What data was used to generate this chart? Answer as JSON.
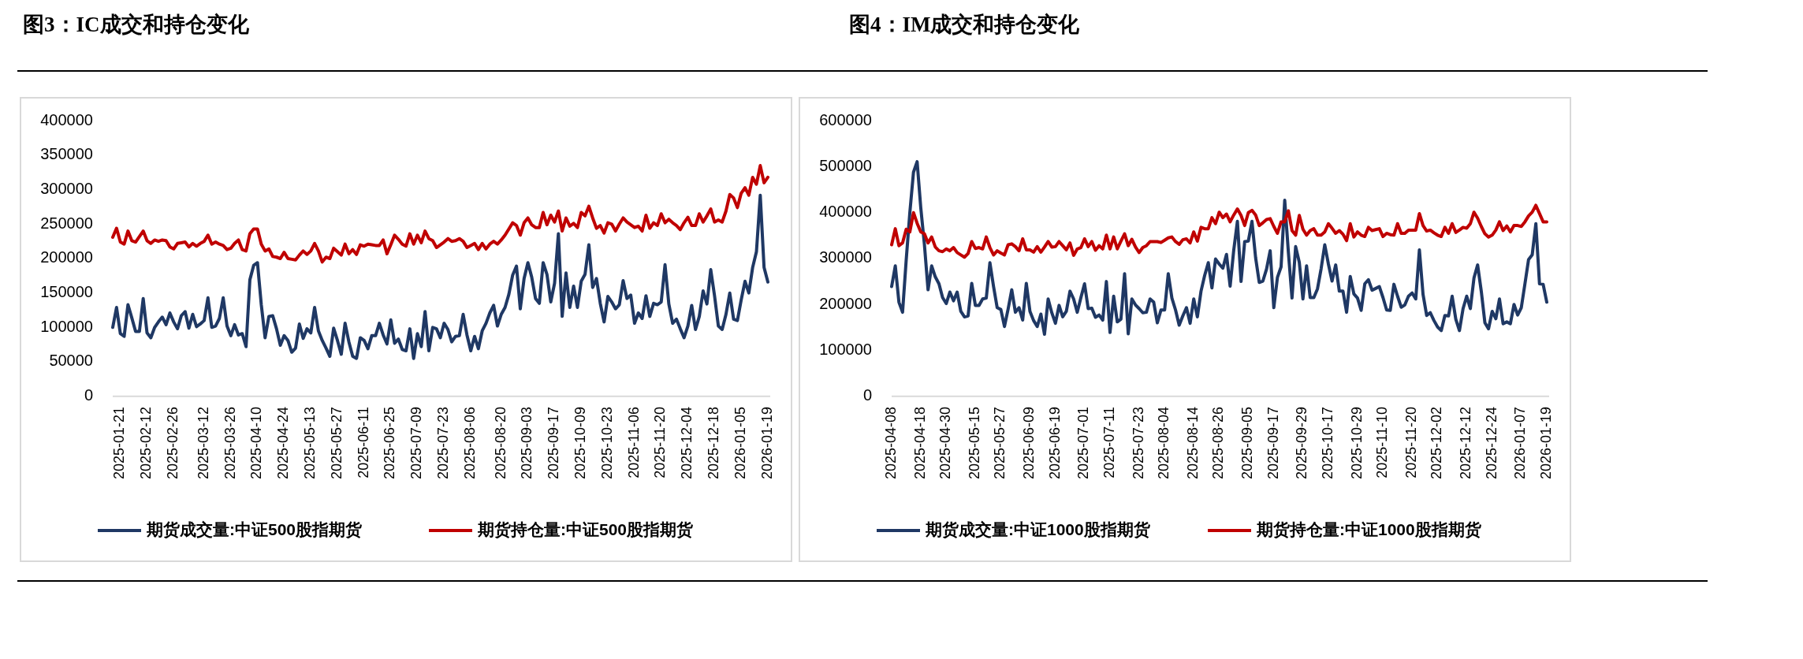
{
  "chart_data": [
    {
      "type": "line",
      "title": "图3：IC成交和持仓变化",
      "categories": [
        null,
        null,
        "2025-01-21",
        null,
        null,
        null,
        null,
        null,
        null,
        "2025-02-12",
        null,
        null,
        null,
        null,
        null,
        null,
        "2025-02-26",
        null,
        null,
        null,
        null,
        null,
        null,
        null,
        "2025-03-12",
        null,
        null,
        null,
        null,
        null,
        null,
        "2025-03-26",
        null,
        null,
        null,
        null,
        null,
        null,
        "2025-04-10",
        null,
        null,
        null,
        null,
        null,
        null,
        "2025-04-24",
        null,
        null,
        null,
        null,
        null,
        null,
        "2025-05-13",
        null,
        null,
        null,
        null,
        null,
        null,
        "2025-05-27",
        null,
        null,
        null,
        null,
        null,
        null,
        "2025-06-11",
        null,
        null,
        null,
        null,
        null,
        null,
        "2025-06-25",
        null,
        null,
        null,
        null,
        null,
        null,
        "2025-07-09",
        null,
        null,
        null,
        null,
        null,
        null,
        "2025-07-23",
        null,
        null,
        null,
        null,
        null,
        null,
        "2025-08-06",
        null,
        null,
        null,
        null,
        null,
        null,
        null,
        "2025-08-20",
        null,
        null,
        null,
        null,
        null,
        null,
        "2025-09-03",
        null,
        null,
        null,
        null,
        null,
        null,
        "2025-09-17",
        null,
        null,
        null,
        null,
        null,
        null,
        "2025-10-09",
        null,
        null,
        null,
        null,
        null,
        null,
        "2025-10-23",
        null,
        null,
        null,
        null,
        null,
        null,
        "2025-11-06",
        null,
        null,
        null,
        null,
        null,
        null,
        "2025-11-20",
        null,
        null,
        null,
        null,
        null,
        null,
        "2025-12-04",
        null,
        null,
        null,
        null,
        null,
        null,
        "2025-12-18",
        null,
        null,
        null,
        null,
        null,
        null,
        "2026-01-05",
        null,
        null,
        null,
        null,
        null,
        null,
        "2026-01-19"
      ],
      "series": [
        {
          "name": "期货成交量:中证500股指期货",
          "color": "#1f3864",
          "values": [
            100000,
            129000,
            91000,
            87000,
            133000,
            114000,
            94000,
            94000,
            142000,
            92000,
            85000,
            100000,
            108000,
            115000,
            104000,
            121000,
            108000,
            98000,
            117000,
            123000,
            99000,
            119000,
            101000,
            105000,
            110000,
            143000,
            100000,
            102000,
            113000,
            143000,
            102000,
            88000,
            104000,
            89000,
            91000,
            72000,
            169000,
            190000,
            194000,
            133000,
            85000,
            116000,
            117000,
            98000,
            74000,
            88000,
            81000,
            64000,
            70000,
            105000,
            84000,
            98000,
            92000,
            129000,
            95000,
            81000,
            70000,
            58000,
            99000,
            81000,
            61000,
            106000,
            79000,
            58000,
            55000,
            85000,
            81000,
            69000,
            88000,
            88000,
            106000,
            89000,
            76000,
            111000,
            77000,
            83000,
            68000,
            66000,
            98000,
            55000,
            91000,
            72000,
            123000,
            66000,
            100000,
            98000,
            85000,
            106000,
            97000,
            79000,
            87000,
            88000,
            119000,
            89000,
            66000,
            87000,
            69000,
            95000,
            106000,
            121000,
            132000,
            102000,
            119000,
            129000,
            148000,
            176000,
            189000,
            127000,
            171000,
            194000,
            173000,
            142000,
            135000,
            194000,
            177000,
            137000,
            164000,
            236000,
            116000,
            179000,
            129000,
            160000,
            129000,
            167000,
            177000,
            220000,
            158000,
            171000,
            135000,
            108000,
            145000,
            137000,
            127000,
            133000,
            168000,
            142000,
            147000,
            106000,
            121000,
            113000,
            146000,
            116000,
            135000,
            133000,
            137000,
            191000,
            134000,
            106000,
            112000,
            98000,
            85000,
            102000,
            132000,
            97000,
            116000,
            153000,
            134000,
            184000,
            146000,
            102000,
            97000,
            119000,
            150000,
            112000,
            110000,
            140000,
            167000,
            150000,
            187000,
            210000,
            292000,
            187000,
            166000
          ]
        },
        {
          "name": "期货持仓量:中证500股指期货",
          "color": "#c00000",
          "values": [
            231000,
            244000,
            224000,
            221000,
            240000,
            226000,
            224000,
            232000,
            240000,
            226000,
            222000,
            227000,
            225000,
            227000,
            226000,
            217000,
            214000,
            222000,
            223000,
            224000,
            217000,
            222000,
            218000,
            222000,
            225000,
            234000,
            221000,
            224000,
            221000,
            219000,
            213000,
            215000,
            222000,
            227000,
            213000,
            211000,
            236000,
            243000,
            243000,
            221000,
            211000,
            214000,
            203000,
            202000,
            200000,
            209000,
            200000,
            199000,
            198000,
            205000,
            211000,
            206000,
            211000,
            222000,
            211000,
            195000,
            202000,
            200000,
            215000,
            210000,
            205000,
            221000,
            207000,
            213000,
            206000,
            220000,
            218000,
            221000,
            220000,
            219000,
            219000,
            227000,
            207000,
            220000,
            234000,
            228000,
            221000,
            218000,
            236000,
            221000,
            234000,
            223000,
            240000,
            229000,
            226000,
            216000,
            220000,
            224000,
            229000,
            225000,
            226000,
            229000,
            225000,
            216000,
            219000,
            222000,
            213000,
            222000,
            214000,
            221000,
            225000,
            221000,
            227000,
            234000,
            243000,
            252000,
            248000,
            234000,
            252000,
            259000,
            249000,
            245000,
            245000,
            267000,
            249000,
            263000,
            253000,
            269000,
            240000,
            259000,
            247000,
            251000,
            245000,
            267000,
            262000,
            276000,
            259000,
            244000,
            248000,
            237000,
            252000,
            250000,
            240000,
            250000,
            259000,
            253000,
            249000,
            245000,
            247000,
            240000,
            263000,
            244000,
            252000,
            248000,
            265000,
            252000,
            257000,
            252000,
            248000,
            242000,
            252000,
            260000,
            248000,
            248000,
            265000,
            253000,
            262000,
            272000,
            253000,
            256000,
            253000,
            269000,
            293000,
            288000,
            274000,
            295000,
            303000,
            292000,
            318000,
            308000,
            335000,
            310000,
            318000
          ]
        }
      ],
      "ylim": [
        0,
        400000
      ],
      "yticks": [
        0,
        50000,
        100000,
        150000,
        200000,
        250000,
        300000,
        350000,
        400000
      ],
      "legend": "bottom"
    },
    {
      "type": "line",
      "title": "图4：IM成交和持仓变化",
      "categories": [
        "2025-04-08",
        null,
        null,
        null,
        null,
        null,
        null,
        null,
        "2025-04-18",
        null,
        null,
        null,
        null,
        null,
        null,
        "2025-04-30",
        null,
        null,
        null,
        null,
        null,
        null,
        null,
        "2025-05-15",
        null,
        null,
        null,
        null,
        null,
        null,
        "2025-05-27",
        null,
        null,
        null,
        null,
        null,
        null,
        null,
        "2025-06-09",
        null,
        null,
        null,
        null,
        null,
        null,
        "2025-06-19",
        null,
        null,
        null,
        null,
        null,
        null,
        null,
        "2025-07-01",
        null,
        null,
        null,
        null,
        null,
        null,
        "2025-07-11",
        null,
        null,
        null,
        null,
        null,
        null,
        null,
        "2025-07-23",
        null,
        null,
        null,
        null,
        null,
        null,
        "2025-08-04",
        null,
        null,
        null,
        null,
        null,
        null,
        null,
        "2025-08-14",
        null,
        null,
        null,
        null,
        null,
        null,
        "2025-08-26",
        null,
        null,
        null,
        null,
        null,
        null,
        null,
        "2025-09-05",
        null,
        null,
        null,
        null,
        null,
        null,
        "2025-09-17",
        null,
        null,
        null,
        null,
        null,
        null,
        null,
        "2025-09-29",
        null,
        null,
        null,
        null,
        null,
        null,
        "2025-10-17",
        null,
        null,
        null,
        null,
        null,
        null,
        null,
        "2025-10-29",
        null,
        null,
        null,
        null,
        null,
        null,
        "2025-11-10",
        null,
        null,
        null,
        null,
        null,
        null,
        null,
        "2025-11-20",
        null,
        null,
        null,
        null,
        null,
        null,
        "2025-12-02",
        null,
        null,
        null,
        null,
        null,
        null,
        null,
        "2025-12-12",
        null,
        null,
        null,
        null,
        null,
        null,
        "2025-12-24",
        null,
        null,
        null,
        null,
        null,
        null,
        null,
        "2026-01-07",
        null,
        null,
        null,
        null,
        null,
        null,
        "2026-01-19"
      ],
      "series": [
        {
          "name": "期货成交量:中证1000股指期货",
          "color": "#1f3864",
          "values": [
            239000,
            284000,
            205000,
            183000,
            297000,
            400000,
            488000,
            511000,
            411000,
            331000,
            232000,
            284000,
            260000,
            245000,
            215000,
            202000,
            227000,
            208000,
            227000,
            185000,
            173000,
            175000,
            246000,
            198000,
            198000,
            212000,
            214000,
            291000,
            239000,
            193000,
            189000,
            152000,
            190000,
            232000,
            183000,
            193000,
            166000,
            246000,
            185000,
            165000,
            152000,
            179000,
            135000,
            212000,
            182000,
            159000,
            198000,
            173000,
            185000,
            229000,
            212000,
            183000,
            215000,
            245000,
            191000,
            192000,
            172000,
            177000,
            166000,
            250000,
            139000,
            218000,
            162000,
            168000,
            267000,
            136000,
            212000,
            199000,
            191000,
            182000,
            183000,
            212000,
            205000,
            160000,
            188000,
            188000,
            267000,
            214000,
            188000,
            155000,
            175000,
            193000,
            159000,
            212000,
            173000,
            229000,
            263000,
            291000,
            236000,
            299000,
            288000,
            279000,
            309000,
            240000,
            319000,
            381000,
            250000,
            337000,
            338000,
            381000,
            302000,
            248000,
            251000,
            277000,
            317000,
            193000,
            259000,
            282000,
            427000,
            314000,
            214000,
            326000,
            292000,
            212000,
            284000,
            215000,
            215000,
            234000,
            278000,
            330000,
            288000,
            251000,
            286000,
            229000,
            229000,
            183000,
            261000,
            223000,
            214000,
            187000,
            245000,
            254000,
            231000,
            235000,
            239000,
            215000,
            188000,
            187000,
            244000,
            218000,
            194000,
            199000,
            218000,
            225000,
            212000,
            319000,
            222000,
            176000,
            182000,
            165000,
            151000,
            143000,
            176000,
            175000,
            218000,
            168000,
            143000,
            191000,
            218000,
            191000,
            258000,
            286000,
            229000,
            160000,
            147000,
            185000,
            169000,
            212000,
            158000,
            162000,
            158000,
            200000,
            177000,
            193000,
            245000,
            298000,
            308000,
            376000,
            245000,
            244000,
            205000
          ]
        },
        {
          "name": "期货持仓量:中证1000股指期货",
          "color": "#c00000",
          "values": [
            330000,
            365000,
            328000,
            334000,
            364000,
            358000,
            400000,
            377000,
            358000,
            354000,
            334000,
            347000,
            325000,
            317000,
            315000,
            321000,
            317000,
            324000,
            313000,
            308000,
            303000,
            311000,
            337000,
            322000,
            324000,
            321000,
            347000,
            324000,
            308000,
            317000,
            312000,
            308000,
            330000,
            332000,
            326000,
            317000,
            343000,
            319000,
            319000,
            314000,
            326000,
            314000,
            325000,
            337000,
            325000,
            326000,
            337000,
            328000,
            319000,
            334000,
            307000,
            321000,
            324000,
            343000,
            326000,
            337000,
            318000,
            328000,
            321000,
            351000,
            321000,
            347000,
            321000,
            338000,
            354000,
            328000,
            342000,
            325000,
            313000,
            324000,
            328000,
            337000,
            337000,
            337000,
            335000,
            340000,
            345000,
            347000,
            337000,
            331000,
            341000,
            343000,
            334000,
            358000,
            338000,
            368000,
            365000,
            365000,
            389000,
            376000,
            401000,
            389000,
            397000,
            380000,
            395000,
            408000,
            394000,
            372000,
            400000,
            405000,
            395000,
            372000,
            378000,
            385000,
            387000,
            370000,
            355000,
            380000,
            380000,
            404000,
            361000,
            351000,
            394000,
            364000,
            351000,
            361000,
            365000,
            351000,
            351000,
            358000,
            376000,
            366000,
            355000,
            361000,
            353000,
            339000,
            376000,
            347000,
            358000,
            351000,
            348000,
            368000,
            361000,
            363000,
            365000,
            348000,
            355000,
            352000,
            351000,
            376000,
            355000,
            355000,
            362000,
            362000,
            362000,
            398000,
            372000,
            360000,
            362000,
            356000,
            351000,
            348000,
            368000,
            355000,
            376000,
            357000,
            362000,
            368000,
            366000,
            376000,
            401000,
            388000,
            370000,
            354000,
            347000,
            351000,
            362000,
            380000,
            361000,
            371000,
            358000,
            372000,
            372000,
            370000,
            380000,
            393000,
            401000,
            416000,
            398000,
            380000,
            380000
          ]
        }
      ],
      "ylim": [
        0,
        600000
      ],
      "yticks": [
        0,
        100000,
        200000,
        300000,
        400000,
        500000,
        600000
      ],
      "legend": "bottom"
    }
  ]
}
